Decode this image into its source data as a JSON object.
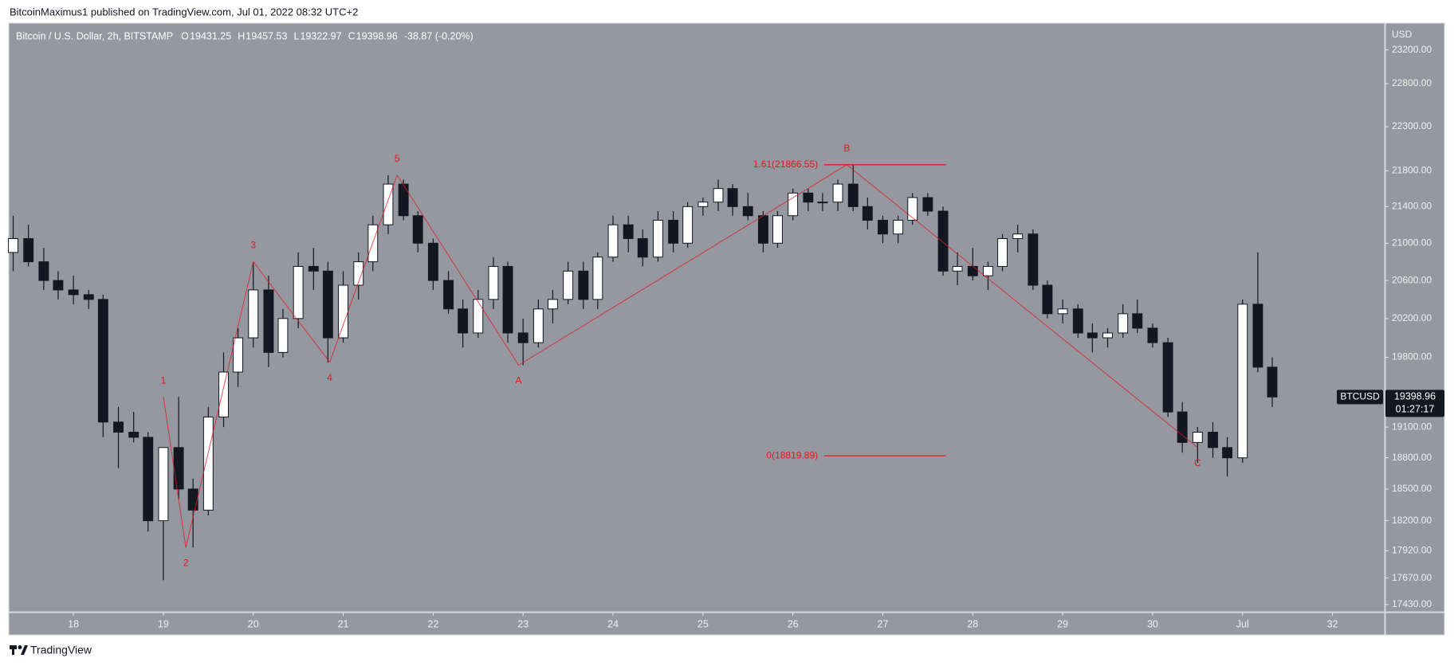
{
  "header": {
    "publisher": "BitcoinMaximus1 published on TradingView.com, Jul 01, 2022 08:32 UTC+2"
  },
  "footer": {
    "brand": "TradingView"
  },
  "chart_data": {
    "type": "candlestick",
    "title": "Bitcoin / U.S. Dollar, 2h, BITSTAMP",
    "ohlc_legend": [
      {
        "key": "O",
        "value": "19431.25"
      },
      {
        "key": "H",
        "value": "19457.53"
      },
      {
        "key": "L",
        "value": "19322.97"
      },
      {
        "key": "C",
        "value": "19398.96"
      }
    ],
    "change": "-38.87 (-0.20%)",
    "y_axis_label": "USD",
    "log_scale": true,
    "grid": false,
    "up_color": "#ffffff",
    "down_color": "#131722",
    "wick_color": "#131722",
    "annotation_color": "#e8151b",
    "xlim": [
      17.29,
      32.58
    ],
    "xticks": [
      18,
      19,
      20,
      21,
      22,
      23,
      24,
      25,
      26,
      27,
      28,
      29,
      30,
      {
        "value": 31,
        "label": "Jul"
      },
      32
    ],
    "ylim": [
      17372,
      23514
    ],
    "yticks": [
      {
        "value": 17430,
        "label": "17430.00"
      },
      {
        "value": 17670,
        "label": "17670.00"
      },
      {
        "value": 17920,
        "label": "17920.00"
      },
      {
        "value": 18200,
        "label": "18200.00"
      },
      {
        "value": 18500,
        "label": "18500.00"
      },
      {
        "value": 18800,
        "label": "18800.00"
      },
      {
        "value": 19100,
        "label": "19100.00"
      },
      {
        "value": 19800,
        "label": "19800.00"
      },
      {
        "value": 20200,
        "label": "20200.00"
      },
      {
        "value": 20600,
        "label": "20600.00"
      },
      {
        "value": 21000,
        "label": "21000.00"
      },
      {
        "value": 21400,
        "label": "21400.00"
      },
      {
        "value": 21800,
        "label": "21800.00"
      },
      {
        "value": 22300,
        "label": "22300.00"
      },
      {
        "value": 22800,
        "label": "22800.00"
      },
      {
        "value": 23200,
        "label": "23200.00"
      }
    ],
    "last_price": {
      "symbol": "BTCUSD",
      "value": 19398.96,
      "label": "19398.96",
      "countdown": "01:27:17"
    },
    "candles": {
      "x": [
        17.33,
        17.5,
        17.67,
        17.83,
        18.0,
        18.17,
        18.33,
        18.5,
        18.67,
        18.83,
        19.0,
        19.17,
        19.33,
        19.5,
        19.67,
        19.83,
        20.0,
        20.17,
        20.33,
        20.5,
        20.67,
        20.83,
        21.0,
        21.17,
        21.33,
        21.5,
        21.67,
        21.83,
        22.0,
        22.17,
        22.33,
        22.5,
        22.67,
        22.83,
        23.0,
        23.17,
        23.33,
        23.5,
        23.67,
        23.83,
        24.0,
        24.17,
        24.33,
        24.5,
        24.67,
        24.83,
        25.0,
        25.17,
        25.33,
        25.5,
        25.67,
        25.83,
        26.0,
        26.17,
        26.33,
        26.5,
        26.67,
        26.83,
        27.0,
        27.17,
        27.33,
        27.5,
        27.67,
        27.83,
        28.0,
        28.17,
        28.33,
        28.5,
        28.67,
        28.83,
        29.0,
        29.17,
        29.33,
        29.5,
        29.67,
        29.83,
        30.0,
        30.17,
        30.33,
        30.5,
        30.67,
        30.83,
        31.0,
        31.17,
        31.33
      ],
      "open": [
        20900,
        21050,
        20800,
        20600,
        20500,
        20450,
        20400,
        19150,
        19050,
        19000,
        18200,
        18900,
        18500,
        18300,
        19200,
        19650,
        20000,
        20500,
        19850,
        20200,
        20750,
        20700,
        20000,
        20550,
        20800,
        21200,
        21650,
        21300,
        21000,
        20600,
        20300,
        20050,
        20400,
        20750,
        20050,
        19950,
        20300,
        20400,
        20700,
        20400,
        20850,
        21200,
        21050,
        20850,
        21250,
        21000,
        21400,
        21450,
        21600,
        21400,
        21300,
        21000,
        21300,
        21550,
        21450,
        21450,
        21650,
        21400,
        21250,
        21100,
        21250,
        21500,
        21350,
        20700,
        20750,
        20650,
        20750,
        21050,
        21100,
        20550,
        20250,
        20300,
        20050,
        20000,
        20050,
        20250,
        20100,
        19950,
        19250,
        18950,
        19050,
        18900,
        18800,
        20350,
        19700
      ],
      "high": [
        21300,
        21200,
        20950,
        20700,
        20650,
        20500,
        20450,
        19300,
        19250,
        19050,
        18900,
        19400,
        18600,
        19300,
        19850,
        20100,
        20800,
        20650,
        20300,
        20900,
        20950,
        20800,
        20700,
        20900,
        21300,
        21750,
        21700,
        21350,
        21050,
        20700,
        20400,
        20500,
        20850,
        20800,
        20200,
        20400,
        20500,
        20800,
        20800,
        20900,
        21300,
        21300,
        21150,
        21350,
        21350,
        21450,
        21500,
        21700,
        21650,
        21550,
        21350,
        21350,
        21600,
        21600,
        21550,
        21700,
        21866,
        21500,
        21300,
        21300,
        21550,
        21550,
        21400,
        20900,
        20950,
        20800,
        21100,
        21200,
        21150,
        20600,
        20400,
        20350,
        20150,
        20100,
        20350,
        20400,
        20150,
        20000,
        19350,
        19100,
        19150,
        19000,
        20400,
        20900,
        19800
      ],
      "low": [
        20700,
        20750,
        20500,
        20400,
        20350,
        20300,
        19000,
        18700,
        18950,
        18100,
        17650,
        18400,
        17950,
        18250,
        19100,
        19500,
        19900,
        19700,
        19800,
        20100,
        20500,
        19750,
        19950,
        20400,
        20700,
        21100,
        21250,
        20900,
        20500,
        20250,
        19900,
        20000,
        20300,
        19950,
        19720,
        19900,
        20150,
        20350,
        20300,
        20300,
        20800,
        20900,
        20750,
        20800,
        20900,
        20950,
        21300,
        21350,
        21300,
        21250,
        20900,
        20950,
        21250,
        21350,
        21350,
        21350,
        21350,
        21150,
        21000,
        21000,
        21200,
        21300,
        20650,
        20550,
        20600,
        20500,
        20700,
        20900,
        20500,
        20200,
        20150,
        20000,
        19850,
        19900,
        20000,
        20050,
        19900,
        19200,
        18850,
        18750,
        18800,
        18620,
        18750,
        19650,
        19300
      ],
      "close": [
        21050,
        20800,
        20600,
        20500,
        20450,
        20400,
        19150,
        19050,
        19000,
        18200,
        18900,
        18500,
        18300,
        19200,
        19650,
        20000,
        20500,
        19850,
        20200,
        20750,
        20700,
        20000,
        20550,
        20800,
        21200,
        21650,
        21300,
        21000,
        20600,
        20300,
        20050,
        20400,
        20750,
        20050,
        19950,
        20300,
        20400,
        20700,
        20400,
        20850,
        21200,
        21050,
        20850,
        21250,
        21000,
        21400,
        21450,
        21600,
        21400,
        21300,
        21000,
        21300,
        21550,
        21450,
        21450,
        21650,
        21400,
        21250,
        21100,
        21250,
        21500,
        21350,
        20700,
        20750,
        20650,
        20750,
        21050,
        21100,
        20550,
        20250,
        20300,
        20050,
        20000,
        20050,
        20250,
        20100,
        19950,
        19250,
        18950,
        19050,
        18900,
        18800,
        20350,
        19700,
        19398.96
      ]
    },
    "waves": [
      {
        "label": "1",
        "x": 19.0,
        "y": 19400
      },
      {
        "label": "2",
        "x": 19.25,
        "y": 17950
      },
      {
        "label": "3",
        "x": 20.0,
        "y": 20800
      },
      {
        "label": "4",
        "x": 20.85,
        "y": 19750
      },
      {
        "label": "5",
        "x": 21.6,
        "y": 21750
      },
      {
        "label": "A",
        "x": 22.95,
        "y": 19720
      },
      {
        "label": "B",
        "x": 26.6,
        "y": 21866.55
      },
      {
        "label": "C",
        "x": 30.5,
        "y": 18900
      }
    ],
    "fib_x": [
      26.35,
      27.7
    ],
    "fib_levels": [
      {
        "label": "1.61(21866.55)",
        "value": 21866.55
      },
      {
        "label": "0(18819.89)",
        "value": 18819.89
      }
    ]
  }
}
